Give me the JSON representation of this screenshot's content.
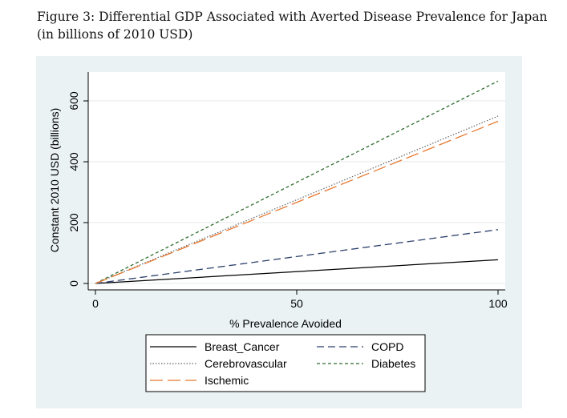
{
  "figure": {
    "caption": "Figure 3: Differential GDP Associated with Averted Disease Prevalence for Japan (in billions of 2010 USD)"
  },
  "chart_data": {
    "type": "line",
    "title": "Differential GDP Associated with Averted Disease Prevalence for Japan (in billions of 2010 USD)",
    "xlabel": "% Prevalence Avoided",
    "ylabel": "Constant 2010 USD (billions)",
    "xlim": [
      0,
      100
    ],
    "ylim": [
      0,
      700
    ],
    "xticks": [
      0,
      50,
      100
    ],
    "yticks": [
      0,
      200,
      400,
      600
    ],
    "x": [
      0,
      100
    ],
    "grid": "horizontal",
    "legend_position": "bottom",
    "series": [
      {
        "name": "Breast_Cancer",
        "values": [
          0,
          78
        ],
        "color": "#000000",
        "style": "solid"
      },
      {
        "name": "COPD",
        "values": [
          0,
          177
        ],
        "color": "#2b3f6b",
        "style": "dashed"
      },
      {
        "name": "Cerebrovascular",
        "values": [
          0,
          550
        ],
        "color": "#666666",
        "style": "dotted"
      },
      {
        "name": "Diabetes",
        "values": [
          0,
          665
        ],
        "color": "#2e6b2e",
        "style": "shortdash"
      },
      {
        "name": "Ischemic",
        "values": [
          0,
          533
        ],
        "color": "#e8772e",
        "style": "longdash"
      }
    ],
    "legend_order": [
      "Breast_Cancer",
      "COPD",
      "Cerebrovascular",
      "Diabetes",
      "Ischemic"
    ]
  }
}
